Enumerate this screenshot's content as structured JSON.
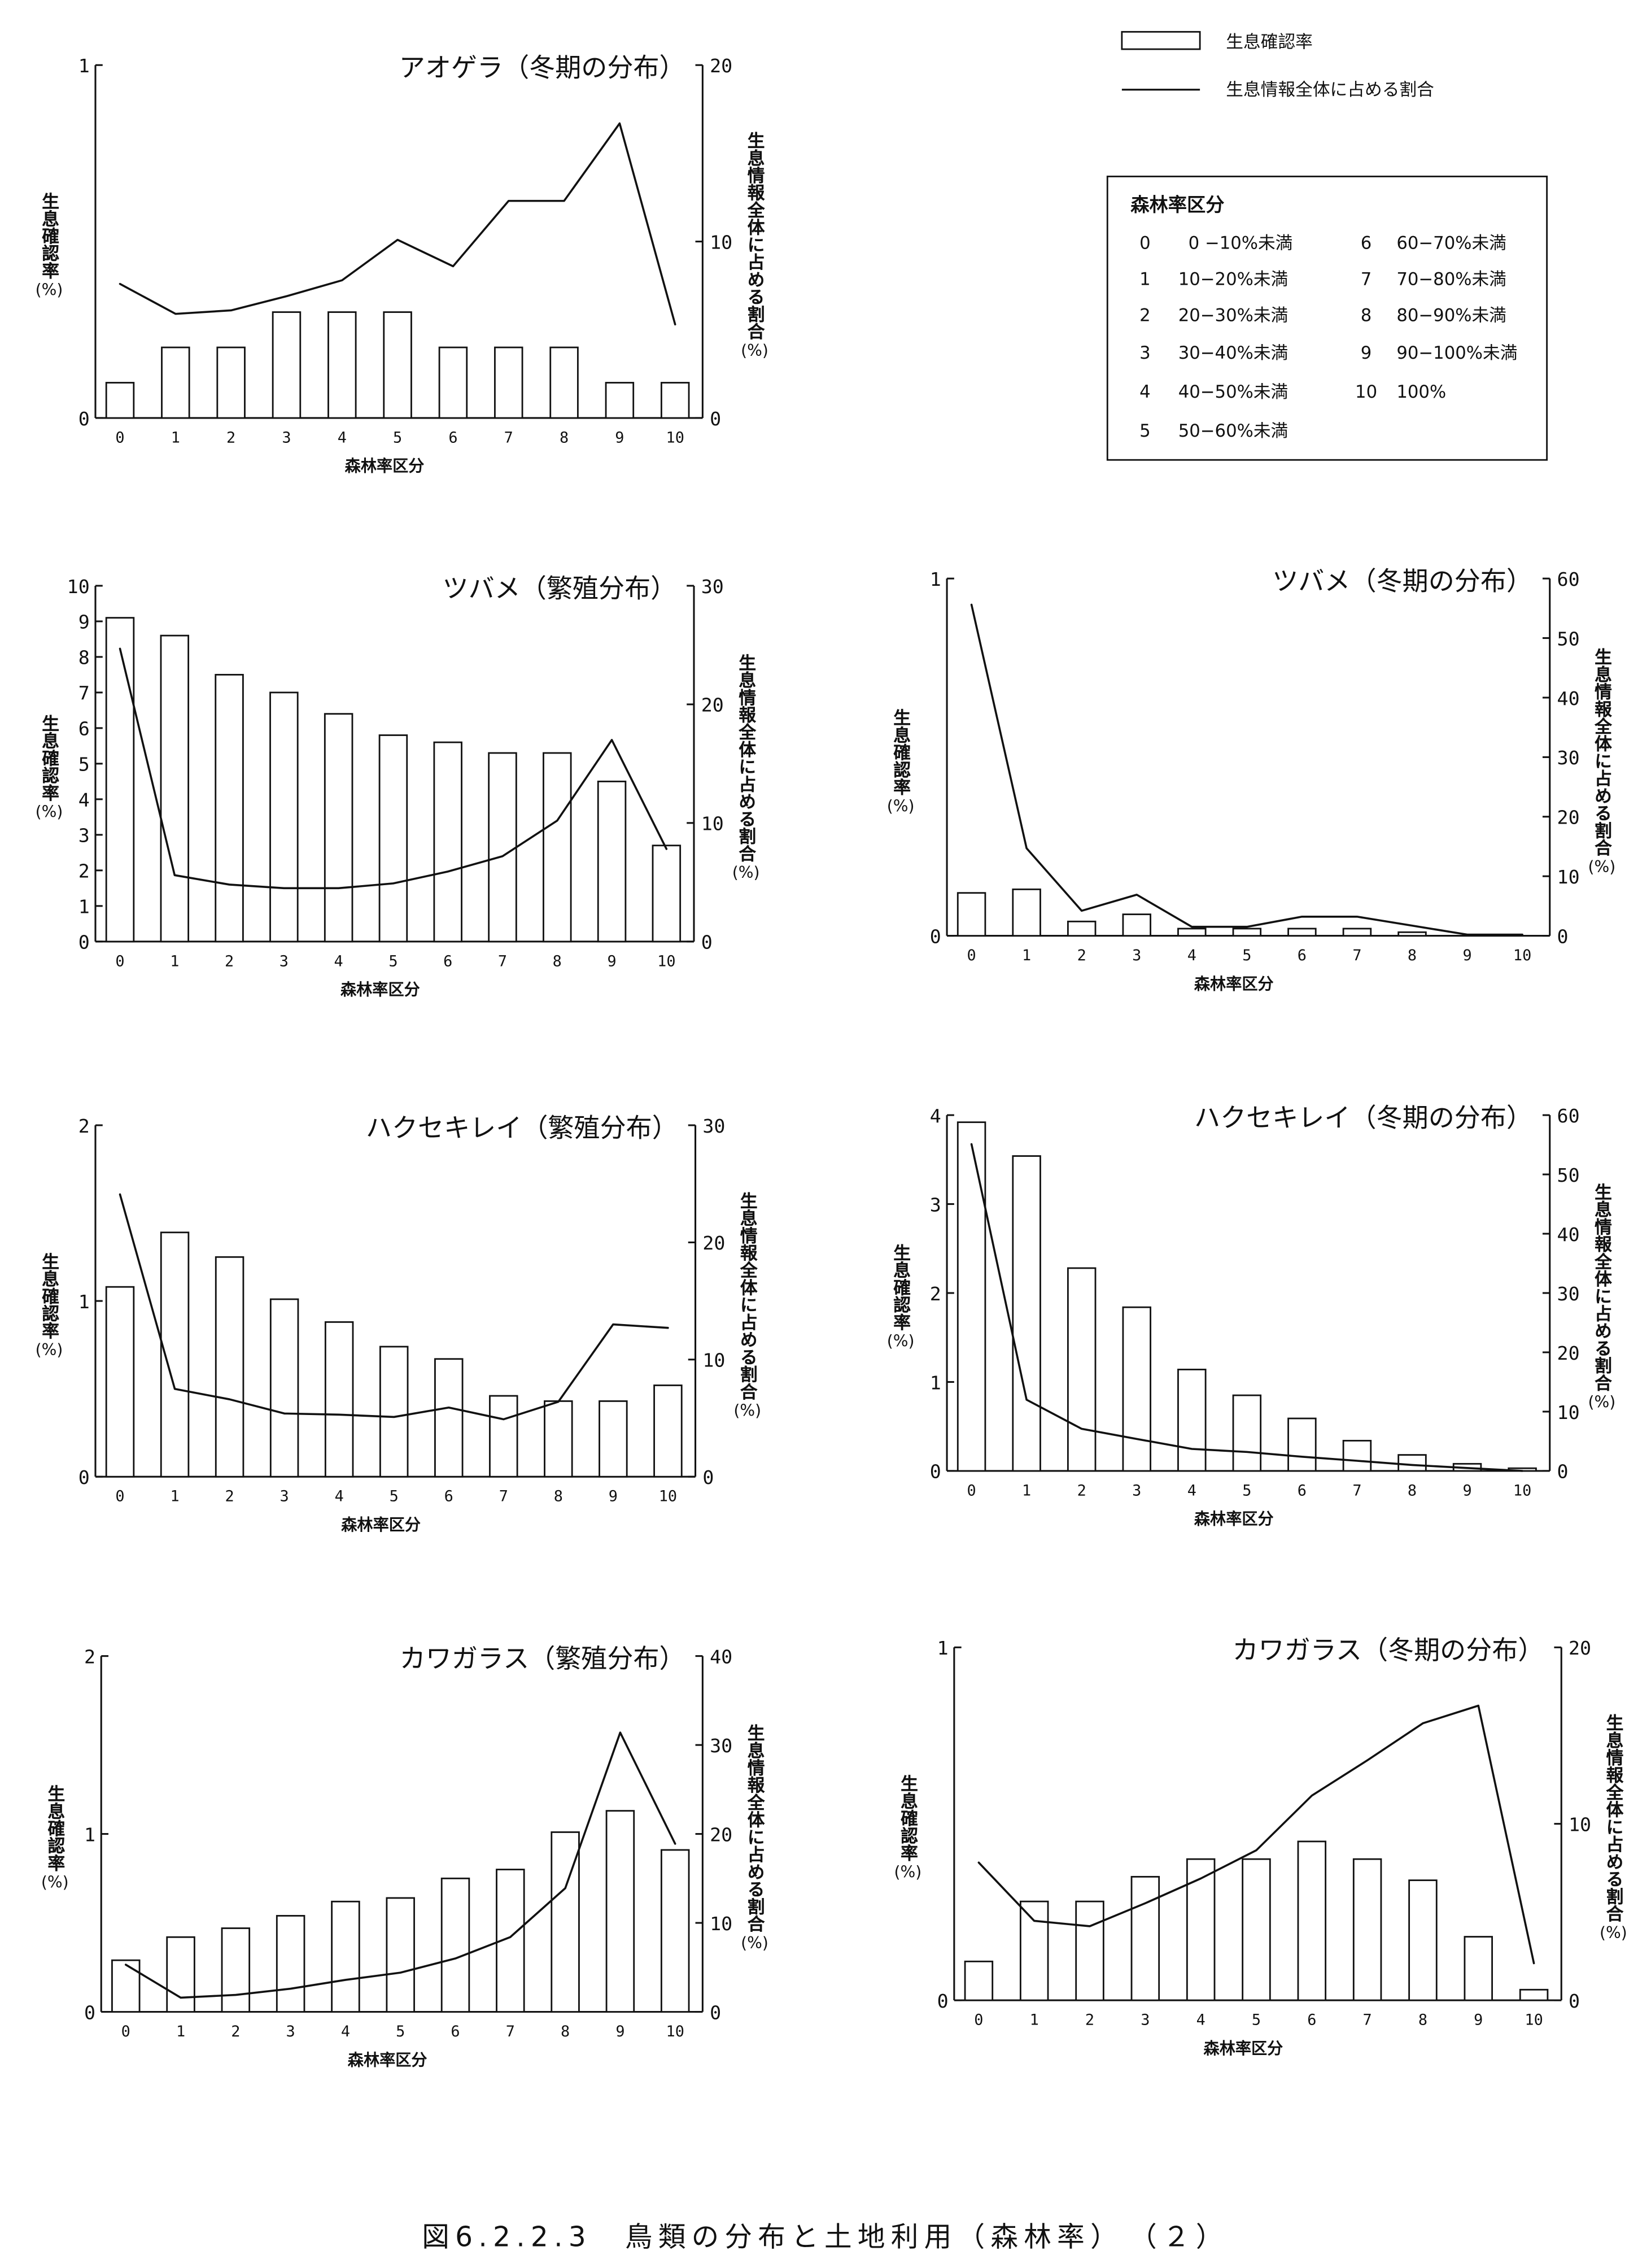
{
  "legend": {
    "items": [
      {
        "label": "生息確認率"
      },
      {
        "label": "生息情報全体に占める割合"
      }
    ]
  },
  "class_table": {
    "title": "森林率区分",
    "rows": [
      {
        "code": "0",
        "range": "0 −10%未満"
      },
      {
        "code": "1",
        "range": "10−20%未満"
      },
      {
        "code": "2",
        "range": "20−30%未満"
      },
      {
        "code": "3",
        "range": "30−40%未満"
      },
      {
        "code": "4",
        "range": "40−50%未満"
      },
      {
        "code": "5",
        "range": "50−60%未満"
      },
      {
        "code": "6",
        "range": "60−70%未満"
      },
      {
        "code": "7",
        "range": "70−80%未満"
      },
      {
        "code": "8",
        "range": "80−90%未満"
      },
      {
        "code": "9",
        "range": "90−100%未満"
      },
      {
        "code": "10",
        "range": "100%"
      }
    ]
  },
  "caption": "図6.2.2.3　鳥類の分布と土地利用（森林率）　（２）",
  "chart_data": [
    {
      "type": "bar",
      "title": "アオゲラ（冬期の分布）",
      "xlabel": "森林率区分",
      "ylabel": "生息確認率",
      "ylabel_unit": "(%)",
      "ylabel_right": "生息情報全体に占める割合",
      "ylabel_right_unit": "(%)",
      "categories": [
        "0",
        "1",
        "2",
        "3",
        "4",
        "5",
        "6",
        "7",
        "8",
        "9",
        "10"
      ],
      "ylim": [
        0,
        1
      ],
      "ylim_right": [
        0,
        20
      ],
      "yticks": [
        0,
        1
      ],
      "yticks_right": [
        0,
        10,
        20
      ],
      "grid": false,
      "series": [
        {
          "type": "bar",
          "axis": "left",
          "values": [
            0.1,
            0.2,
            0.2,
            0.3,
            0.3,
            0.3,
            0.2,
            0.2,
            0.2,
            0.1,
            0.1
          ]
        },
        {
          "type": "line",
          "axis": "right",
          "values": [
            7.6,
            5.9,
            6.1,
            6.9,
            7.8,
            10.1,
            8.6,
            12.3,
            12.3,
            16.7,
            5.3
          ]
        }
      ]
    },
    {
      "type": "bar",
      "title": "ツバメ（繁殖分布）",
      "xlabel": "森林率区分",
      "ylabel": "生息確認率",
      "ylabel_unit": "(%)",
      "ylabel_right": "生息情報全体に占める割合",
      "ylabel_right_unit": "(%)",
      "categories": [
        "0",
        "1",
        "2",
        "3",
        "4",
        "5",
        "6",
        "7",
        "8",
        "9",
        "10"
      ],
      "ylim": [
        0,
        10
      ],
      "ylim_right": [
        0,
        30
      ],
      "yticks": [
        0,
        1,
        2,
        3,
        4,
        5,
        6,
        7,
        8,
        9,
        10
      ],
      "yticks_right": [
        0,
        10,
        20,
        30
      ],
      "grid": false,
      "series": [
        {
          "type": "bar",
          "axis": "left",
          "values": [
            9.1,
            8.6,
            7.5,
            7.0,
            6.4,
            5.8,
            5.6,
            5.3,
            5.3,
            4.5,
            2.7
          ]
        },
        {
          "type": "line",
          "axis": "right",
          "values": [
            24.7,
            5.6,
            4.8,
            4.5,
            4.5,
            4.9,
            5.9,
            7.2,
            10.2,
            17.0,
            7.8
          ]
        }
      ]
    },
    {
      "type": "bar",
      "title": "ツバメ（冬期の分布）",
      "xlabel": "森林率区分",
      "ylabel": "生息確認率",
      "ylabel_unit": "(%)",
      "ylabel_right": "生息情報全体に占める割合",
      "ylabel_right_unit": "(%)",
      "categories": [
        "0",
        "1",
        "2",
        "3",
        "4",
        "5",
        "6",
        "7",
        "8",
        "9",
        "10"
      ],
      "ylim": [
        0,
        1
      ],
      "ylim_right": [
        0,
        60
      ],
      "yticks": [
        0,
        1
      ],
      "yticks_right": [
        0,
        10,
        20,
        30,
        40,
        50,
        60
      ],
      "grid": false,
      "series": [
        {
          "type": "bar",
          "axis": "left",
          "values": [
            0.12,
            0.13,
            0.04,
            0.06,
            0.02,
            0.02,
            0.02,
            0.02,
            0.01,
            0,
            0
          ]
        },
        {
          "type": "line",
          "axis": "right",
          "values": [
            55.6,
            14.7,
            4.2,
            6.9,
            1.5,
            1.5,
            3.2,
            3.2,
            1.7,
            0.2,
            0.2
          ]
        }
      ]
    },
    {
      "type": "bar",
      "title": "ハクセキレイ（繁殖分布）",
      "xlabel": "森林率区分",
      "ylabel": "生息確認率",
      "ylabel_unit": "(%)",
      "ylabel_right": "生息情報全体に占める割合",
      "ylabel_right_unit": "(%)",
      "categories": [
        "0",
        "1",
        "2",
        "3",
        "4",
        "5",
        "6",
        "7",
        "8",
        "9",
        "10"
      ],
      "ylim": [
        0,
        2
      ],
      "ylim_right": [
        0,
        30
      ],
      "yticks": [
        0,
        1,
        2
      ],
      "yticks_right": [
        0,
        10,
        20,
        30
      ],
      "grid": false,
      "series": [
        {
          "type": "bar",
          "axis": "left",
          "values": [
            1.08,
            1.39,
            1.25,
            1.01,
            0.88,
            0.74,
            0.67,
            0.46,
            0.43,
            0.43,
            0.52
          ]
        },
        {
          "type": "line",
          "axis": "right",
          "values": [
            24.1,
            7.5,
            6.6,
            5.4,
            5.3,
            5.1,
            5.9,
            4.9,
            6.4,
            13.0,
            12.7
          ]
        }
      ]
    },
    {
      "type": "bar",
      "title": "ハクセキレイ（冬期の分布）",
      "xlabel": "森林率区分",
      "ylabel": "生息確認率",
      "ylabel_unit": "(%)",
      "ylabel_right": "生息情報全体に占める割合",
      "ylabel_right_unit": "(%)",
      "categories": [
        "0",
        "1",
        "2",
        "3",
        "4",
        "5",
        "6",
        "7",
        "8",
        "9",
        "10"
      ],
      "ylim": [
        0,
        4
      ],
      "ylim_right": [
        0,
        60
      ],
      "yticks": [
        0,
        1,
        2,
        3,
        4
      ],
      "yticks_right": [
        0,
        10,
        20,
        30,
        40,
        50,
        60
      ],
      "grid": false,
      "series": [
        {
          "type": "bar",
          "axis": "left",
          "values": [
            3.92,
            3.54,
            2.28,
            1.84,
            1.14,
            0.85,
            0.59,
            0.34,
            0.18,
            0.08,
            0.03
          ]
        },
        {
          "type": "line",
          "axis": "right",
          "values": [
            55.1,
            12.0,
            7.1,
            5.4,
            3.7,
            3.2,
            2.4,
            1.7,
            1.0,
            0.5,
            0
          ]
        }
      ]
    },
    {
      "type": "bar",
      "title": "カワガラス（繁殖分布）",
      "xlabel": "森林率区分",
      "ylabel": "生息確認率",
      "ylabel_unit": "(%)",
      "ylabel_right": "生息情報全体に占める割合",
      "ylabel_right_unit": "(%)",
      "categories": [
        "0",
        "1",
        "2",
        "3",
        "4",
        "5",
        "6",
        "7",
        "8",
        "9",
        "10"
      ],
      "ylim": [
        0,
        2
      ],
      "ylim_right": [
        0,
        40
      ],
      "yticks": [
        0,
        1,
        2
      ],
      "yticks_right": [
        0,
        10,
        20,
        30,
        40
      ],
      "grid": false,
      "series": [
        {
          "type": "bar",
          "axis": "left",
          "values": [
            0.29,
            0.42,
            0.47,
            0.54,
            0.62,
            0.64,
            0.75,
            0.8,
            1.01,
            1.13,
            0.91
          ]
        },
        {
          "type": "line",
          "axis": "right",
          "values": [
            5.3,
            1.6,
            1.9,
            2.6,
            3.6,
            4.4,
            6.0,
            8.4,
            13.9,
            31.4,
            18.9
          ]
        }
      ]
    },
    {
      "type": "bar",
      "title": "カワガラス（冬期の分布）",
      "xlabel": "森林率区分",
      "ylabel": "生息確認率",
      "ylabel_unit": "(%)",
      "ylabel_right": "生息情報全体に占める割合",
      "ylabel_right_unit": "(%)",
      "categories": [
        "0",
        "1",
        "2",
        "3",
        "4",
        "5",
        "6",
        "7",
        "8",
        "9",
        "10"
      ],
      "ylim": [
        0,
        1
      ],
      "ylim_right": [
        0,
        20
      ],
      "yticks": [
        0,
        1
      ],
      "yticks_right": [
        0,
        10,
        20
      ],
      "grid": false,
      "series": [
        {
          "type": "bar",
          "axis": "left",
          "values": [
            0.11,
            0.28,
            0.28,
            0.35,
            0.4,
            0.4,
            0.45,
            0.4,
            0.34,
            0.18,
            0.03
          ]
        },
        {
          "type": "line",
          "axis": "right",
          "values": [
            7.8,
            4.5,
            4.2,
            5.5,
            6.9,
            8.5,
            11.6,
            13.6,
            15.7,
            16.7,
            2.1
          ]
        }
      ]
    }
  ]
}
